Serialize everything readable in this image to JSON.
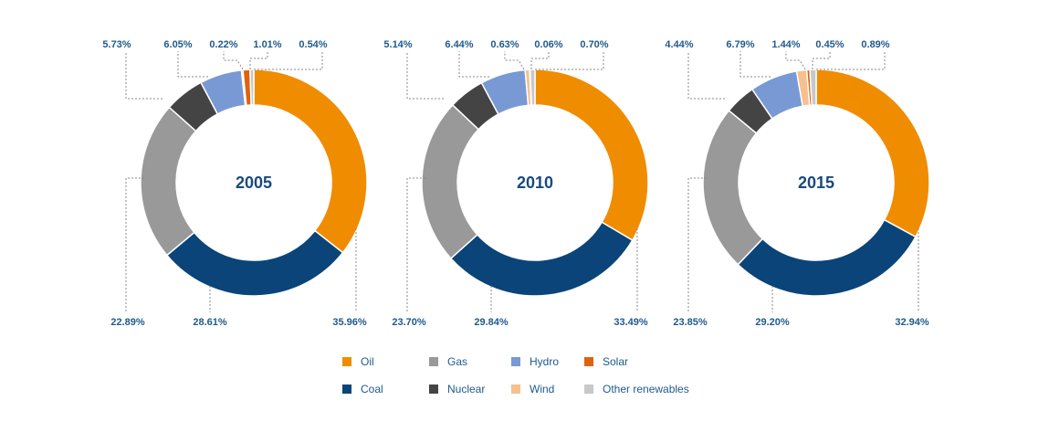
{
  "chart_data": {
    "type": "pie",
    "charts": [
      {
        "year": "2005",
        "values": [
          35.96,
          28.61,
          22.89,
          5.73,
          6.05,
          0.22,
          1.01,
          0.54
        ],
        "labels": [
          "35.96%",
          "28.61%",
          "22.89%",
          "5.73%",
          "6.05%",
          "0.22%",
          "1.01%",
          "0.54%"
        ]
      },
      {
        "year": "2010",
        "values": [
          33.49,
          29.84,
          23.7,
          5.14,
          6.44,
          0.63,
          0.06,
          0.7
        ],
        "labels": [
          "33.49%",
          "29.84%",
          "23.70%",
          "5.14%",
          "6.44%",
          "0.63%",
          "0.06%",
          "0.70%"
        ]
      },
      {
        "year": "2015",
        "values": [
          32.94,
          29.2,
          23.85,
          4.44,
          6.79,
          1.44,
          0.45,
          0.89
        ],
        "labels": [
          "32.94%",
          "29.20%",
          "23.85%",
          "4.44%",
          "6.79%",
          "1.44%",
          "0.45%",
          "0.89%"
        ]
      }
    ],
    "series": [
      {
        "name": "Oil",
        "color": "#f08c00"
      },
      {
        "name": "Coal",
        "color": "#0a4479"
      },
      {
        "name": "Gas",
        "color": "#999999"
      },
      {
        "name": "Nuclear",
        "color": "#444444"
      },
      {
        "name": "Hydro",
        "color": "#7899d4"
      },
      {
        "name": "Wind",
        "color": "#f6c08f"
      },
      {
        "name": "Solar",
        "color": "#e0620e"
      },
      {
        "name": "Other renewables",
        "color": "#c8c8c8"
      }
    ],
    "legend": {
      "position": "bottom",
      "rows": [
        [
          "Oil",
          "Gas",
          "Hydro",
          "Solar"
        ],
        [
          "Coal",
          "Nuclear",
          "Wind",
          "Other renewables"
        ]
      ]
    }
  }
}
